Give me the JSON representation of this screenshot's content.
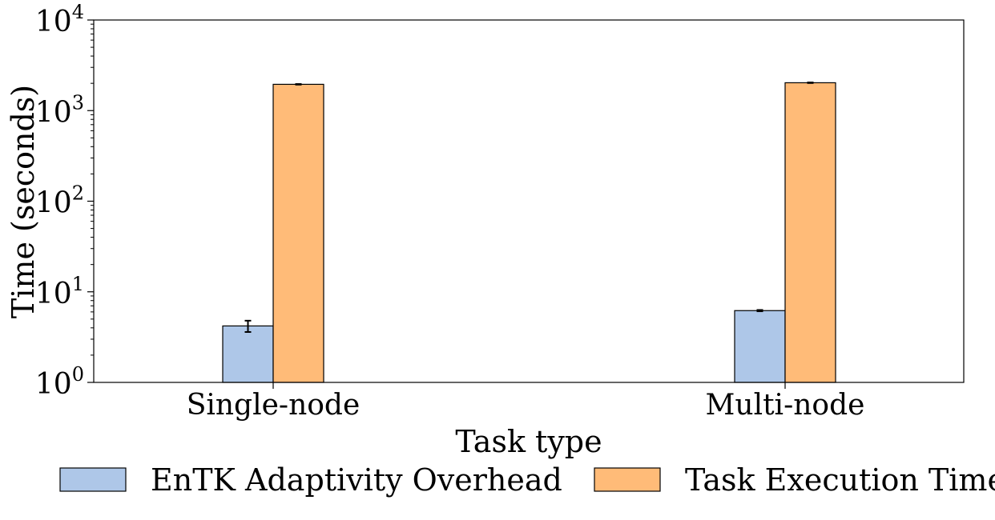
{
  "chart_data": {
    "type": "bar",
    "title": "",
    "xlabel": "Task type",
    "ylabel": "Time (seconds)",
    "yscale": "log",
    "ylim": [
      1,
      10000
    ],
    "categories": [
      "Single-node",
      "Multi-node"
    ],
    "y_tick_labels": [
      {
        "base": "10",
        "exp": "0",
        "value": 1
      },
      {
        "base": "10",
        "exp": "1",
        "value": 10
      },
      {
        "base": "10",
        "exp": "2",
        "value": 100
      },
      {
        "base": "10",
        "exp": "3",
        "value": 1000
      },
      {
        "base": "10",
        "exp": "4",
        "value": 10000
      }
    ],
    "series": [
      {
        "name": "EnTK Adaptivity Overhead",
        "color": "#aec7e8",
        "values": [
          4.2,
          6.2
        ],
        "errors": [
          0.6,
          0.1
        ]
      },
      {
        "name": "Task Execution Time",
        "color": "#ffbb78",
        "values": [
          1950,
          2030
        ],
        "errors": [
          15,
          15
        ]
      }
    ],
    "legend_position": "bottom",
    "grid": false
  }
}
